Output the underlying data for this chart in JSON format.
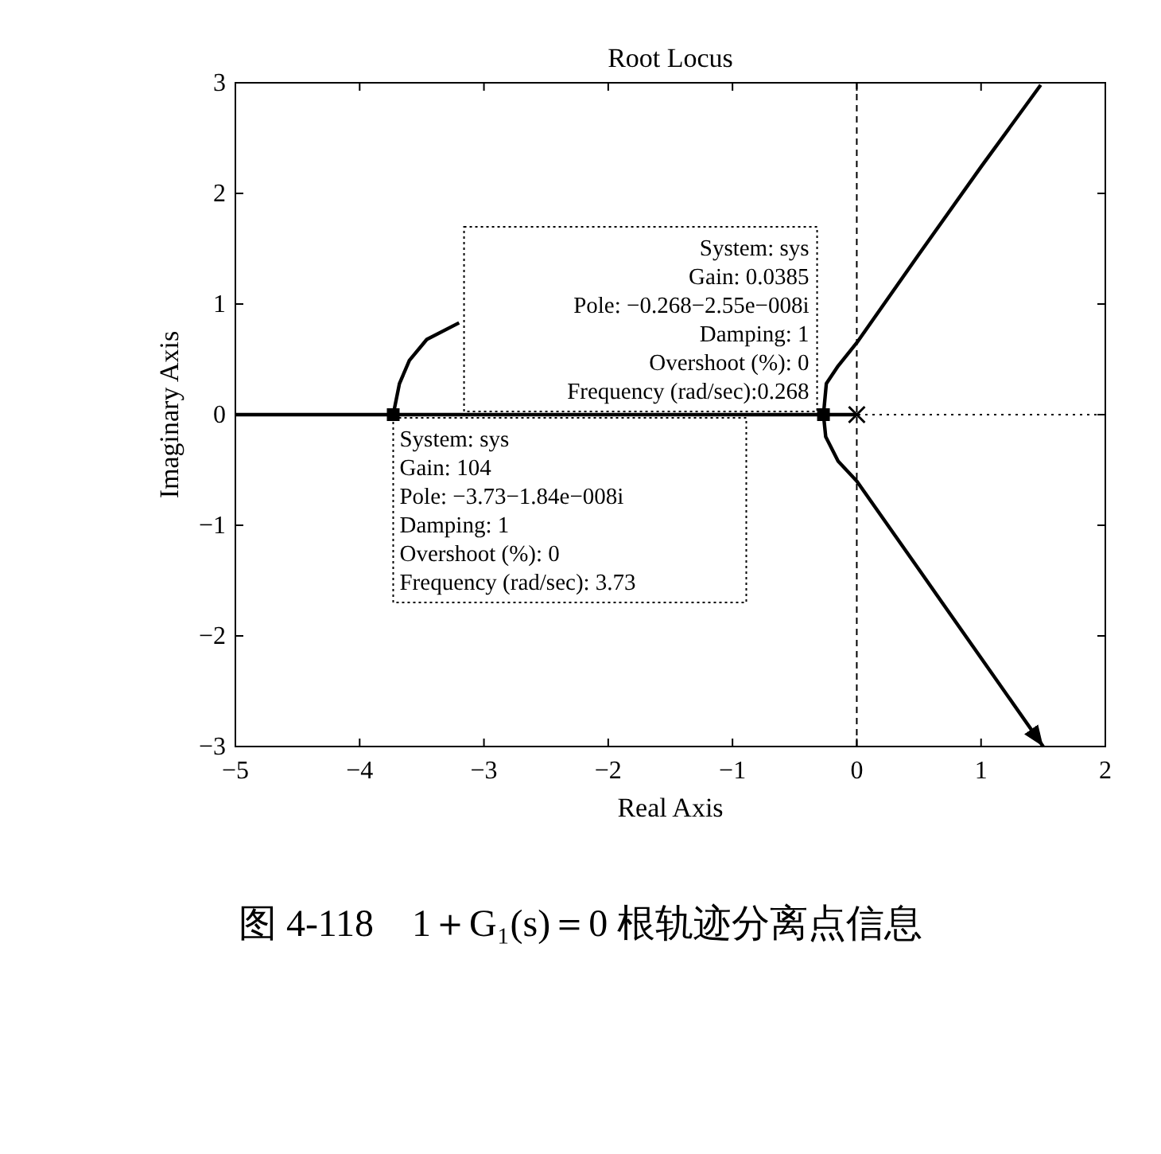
{
  "chart_data": {
    "type": "line",
    "title": "Root Locus",
    "xlabel": "Real Axis",
    "ylabel": "Imaginary Axis",
    "xlim": [
      -5,
      2
    ],
    "ylim": [
      -3,
      3
    ],
    "xticks": [
      -5,
      -4,
      -3,
      -2,
      -1,
      0,
      1,
      2
    ],
    "yticks": [
      -3,
      -2,
      -1,
      0,
      1,
      2,
      3
    ],
    "grid": false,
    "line_style": "solid",
    "series": [
      {
        "x": [
          -5,
          -0.268,
          0
        ],
        "values": [
          0,
          0,
          0
        ],
        "color": "#000000"
      },
      {
        "x": [
          -3.73,
          -3.68,
          -3.6,
          -3.46,
          -3.2
        ],
        "values": [
          0,
          0.28,
          0.49,
          0.68,
          0.83
        ],
        "color": "#000000"
      },
      {
        "x": [
          -0.268,
          -0.245,
          -0.15,
          0,
          0.5,
          1.0,
          1.48
        ],
        "values": [
          0,
          0.28,
          0.44,
          0.65,
          1.45,
          2.24,
          2.98
        ],
        "color": "#000000"
      },
      {
        "x": [
          -0.268,
          -0.25,
          -0.15,
          0,
          0.5,
          1.0,
          1.5
        ],
        "values": [
          0,
          -0.2,
          -0.42,
          -0.6,
          -1.4,
          -2.2,
          -3
        ],
        "color": "#000000"
      },
      {
        "type": "scatter",
        "marker": "cross",
        "x": [
          0
        ],
        "values": [
          0
        ],
        "color": "#000000"
      },
      {
        "type": "scatter",
        "marker": "square",
        "x": [
          -3.73,
          -0.268
        ],
        "values": [
          0,
          0
        ],
        "color": "#000000"
      }
    ],
    "ref_lines": [
      {
        "axis": "x",
        "value": 0,
        "line_style": "dashed"
      },
      {
        "axis": "y",
        "value": 0,
        "line_style": "dotted"
      }
    ],
    "annotations": [
      {
        "text": "System: sys\nGain: 0.0385\nPole: −0.268−2.55e−008i\nDamping: 1\nOvershoot (%): 0\nFrequency (rad/sec):0.268",
        "x": -0.268,
        "y": 0
      },
      {
        "text": "System: sys\nGain: 104\nPole: −3.73−1.84e−008i\nDamping: 1\nOvershoot (%): 0\nFrequency (rad/sec): 3.73",
        "x": -3.73,
        "y": 0
      },
      "图 4-118　1＋G₁(s)＝0 根轨迹分离点信息"
    ]
  }
}
